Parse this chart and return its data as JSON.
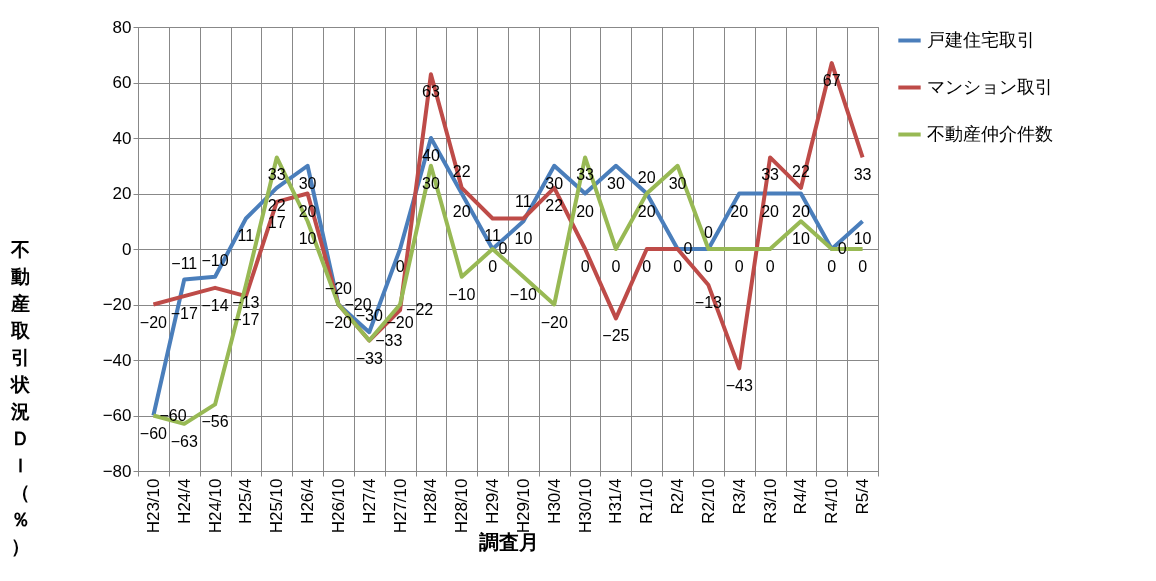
{
  "chart_data": {
    "type": "line",
    "xlabel": "調査月",
    "ylabel": "不動産取引状況ＤＩ（％）",
    "categories": [
      "H23/10",
      "H24/4",
      "H24/10",
      "H25/4",
      "H25/10",
      "H26/4",
      "H26/10",
      "H27/4",
      "H27/10",
      "H28/4",
      "H28/10",
      "H29/4",
      "H29/10",
      "H30/4",
      "H30/10",
      "H31/4",
      "R1/10",
      "R2/4",
      "R2/10",
      "R3/4",
      "R3/10",
      "R4/4",
      "R4/10",
      "R5/4"
    ],
    "series": [
      {
        "name": "戸建住宅取引",
        "color": "#4a7ebb",
        "values": [
          -60,
          -11,
          -10,
          11,
          22,
          30,
          -20,
          -30,
          0,
          40,
          20,
          0,
          10,
          30,
          20,
          30,
          20,
          0,
          0,
          20,
          20,
          20,
          0,
          10
        ]
      },
      {
        "name": "マンション取引",
        "color": "#be4b48",
        "values": [
          -20,
          -17,
          -14,
          -17,
          17,
          20,
          -20,
          -33,
          -22,
          63,
          22,
          11,
          11,
          22,
          0,
          -25,
          0,
          0,
          -13,
          -43,
          33,
          22,
          67,
          33
        ]
      },
      {
        "name": "不動産仲介件数",
        "color": "#98b954",
        "values": [
          -60,
          -63,
          -56,
          -13,
          33,
          10,
          -20,
          -33,
          -20,
          30,
          -10,
          0,
          -10,
          -20,
          33,
          0,
          20,
          30,
          0,
          0,
          0,
          10,
          0,
          0
        ]
      }
    ],
    "ylim": [
      -80,
      80
    ],
    "yticks": [
      -80,
      -60,
      -40,
      -20,
      0,
      20,
      40,
      60,
      80
    ],
    "grid": true,
    "legend": "right",
    "data_labels": true,
    "marker": "none"
  }
}
